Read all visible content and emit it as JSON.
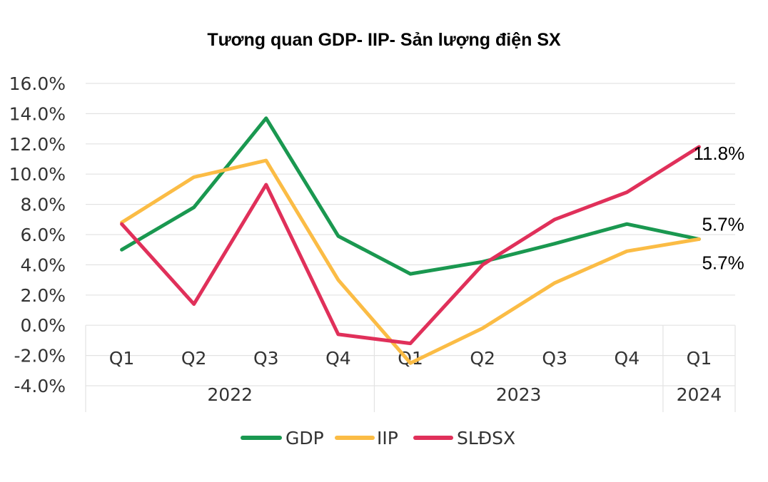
{
  "colors": {
    "gdp": "#1a9850",
    "iip": "#fbbc45",
    "slds": "#e0305a",
    "grid": "#e3e3e3",
    "text": "#333333"
  },
  "chart_data": {
    "type": "line",
    "title": "Tương quan GDP- IIP- Sản lượng điện SX",
    "categories": [
      "Q1",
      "Q2",
      "Q3",
      "Q4",
      "Q1",
      "Q2",
      "Q3",
      "Q4",
      "Q1"
    ],
    "groups": [
      {
        "label": "2022",
        "start": 0,
        "end": 3
      },
      {
        "label": "2023",
        "start": 4,
        "end": 7
      },
      {
        "label": "2024",
        "start": 8,
        "end": 8
      }
    ],
    "y_ticks": [
      "16.0%",
      "14.0%",
      "12.0%",
      "10.0%",
      "8.0%",
      "6.0%",
      "4.0%",
      "2.0%",
      "0.0%",
      "-2.0%",
      "-4.0%"
    ],
    "ylim": [
      -4,
      16
    ],
    "grid": true,
    "legend": "bottom",
    "series": [
      {
        "key": "gdp",
        "name": "GDP",
        "values": [
          5.0,
          7.8,
          13.7,
          5.9,
          3.4,
          4.2,
          5.4,
          6.7,
          5.7
        ]
      },
      {
        "key": "iip",
        "name": "IIP",
        "values": [
          6.8,
          9.8,
          10.9,
          3.0,
          -2.5,
          -0.2,
          2.8,
          4.9,
          5.7
        ]
      },
      {
        "key": "slds",
        "name": "SLĐSX",
        "values": [
          6.7,
          1.4,
          9.3,
          -0.6,
          -1.2,
          4.0,
          7.0,
          8.8,
          11.8
        ]
      }
    ],
    "annotations": [
      {
        "series": "slds",
        "index": 8,
        "text": "11.8%"
      },
      {
        "series": "gdp",
        "index": 8,
        "text": "5.7%"
      },
      {
        "series": "iip",
        "index": 8,
        "text": "5.7%"
      }
    ]
  }
}
